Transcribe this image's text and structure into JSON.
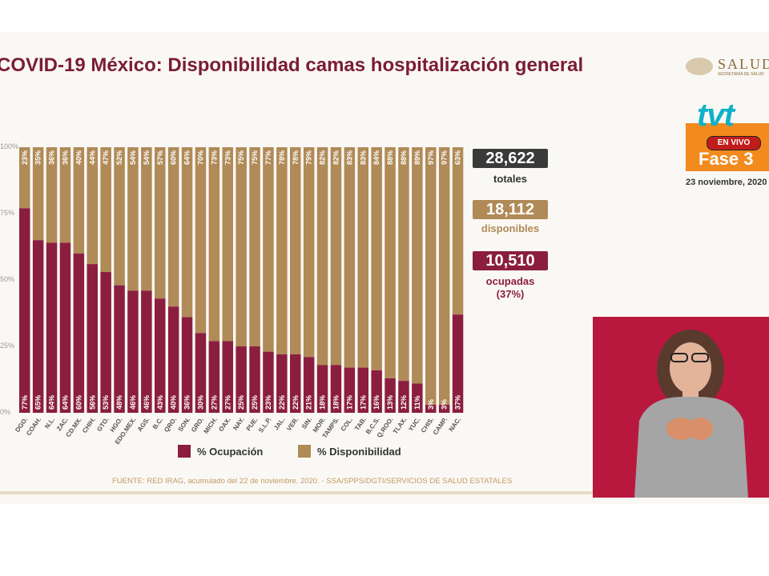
{
  "title": "COVID-19 México: Disponibilidad camas hospitalización general",
  "y_ticks": [
    "0%",
    "25%",
    "50%",
    "75%",
    "100%"
  ],
  "stats": {
    "totales_value": "28,622",
    "totales_label": "totales",
    "disponibles_value": "18,112",
    "disponibles_label": "disponibles",
    "ocupadas_value": "10,510",
    "ocupadas_label": "ocupadas",
    "ocupadas_pct": "(37%)"
  },
  "legend": {
    "ocupacion": "% Ocupación",
    "disponibilidad": "% Disponibilidad"
  },
  "footer": "FUENTE: RED IRAG, acumulado del 22 de noviembre, 2020. - SSA/SPPS/DGTI/SERVICIOS DE SALUD ESTATALES",
  "broadcast": {
    "salud": "SALUD",
    "secretaria": "SECRETARÍA DE SALUD",
    "channel": "tvt",
    "live": "EN VIVO",
    "fase": "Fase 3",
    "date": "23 noviembre, 2020"
  },
  "colors": {
    "ocupacion": "#8b1e3f",
    "disponibilidad": "#b08a57",
    "totales_box": "#3a3a3a",
    "disponibles_box": "#b08a57",
    "ocupadas_box": "#8b1e3f"
  },
  "chart_data": {
    "type": "bar",
    "stacked": true,
    "categories": [
      "DGO.",
      "COAH.",
      "N.L.",
      "ZAC.",
      "CD.MX.",
      "CHIH.",
      "GTO.",
      "HGO.",
      "EDO.MEX.",
      "AGS.",
      "B.C.",
      "QRO.",
      "SON.",
      "GRO.",
      "MICH.",
      "OAX.",
      "NAY.",
      "PUE.",
      "S.L.P.",
      "JAL.",
      "VER.",
      "SIN.",
      "MOR.",
      "TAMPS.",
      "COL.",
      "TAB.",
      "B.C.S.",
      "Q.ROO.",
      "TLAX.",
      "YUC.",
      "CHIS.",
      "CAMP.",
      "NAC."
    ],
    "series": [
      {
        "name": "% Ocupación",
        "values": [
          77,
          65,
          64,
          64,
          60,
          56,
          53,
          48,
          46,
          46,
          43,
          40,
          36,
          30,
          27,
          27,
          25,
          25,
          23,
          22,
          22,
          21,
          18,
          18,
          17,
          17,
          16,
          13,
          12,
          11,
          3,
          3,
          37
        ]
      },
      {
        "name": "% Disponibilidad",
        "values": [
          23,
          35,
          36,
          36,
          40,
          44,
          47,
          52,
          54,
          54,
          57,
          60,
          64,
          70,
          73,
          73,
          75,
          75,
          77,
          78,
          78,
          79,
          82,
          82,
          83,
          83,
          84,
          88,
          88,
          89,
          97,
          97,
          63
        ]
      }
    ],
    "ylim": [
      0,
      100
    ],
    "legend_position": "bottom"
  }
}
